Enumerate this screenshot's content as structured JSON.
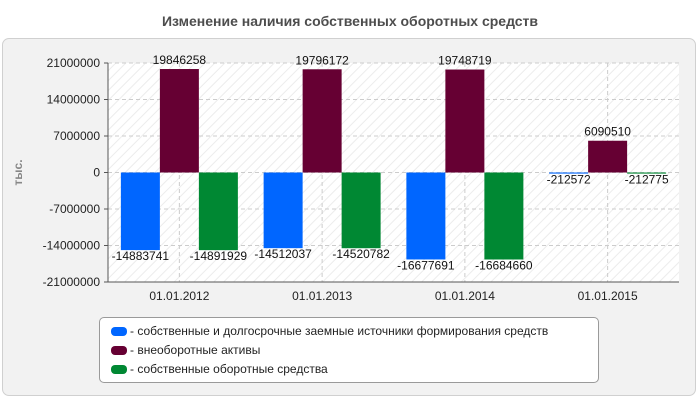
{
  "chart_data": {
    "type": "bar",
    "title": "Изменение наличия собственных оборотных средств",
    "ylabel": "тыс.",
    "xlabel": "",
    "categories": [
      "01.01.2012",
      "01.01.2013",
      "01.01.2014",
      "01.01.2015"
    ],
    "series": [
      {
        "name": "- собственные и долгосрочные заемные источники формирования средств",
        "color": "#0066ff",
        "values": [
          -14883741,
          -14512037,
          -16677691,
          -212572
        ],
        "labels": [
          "-14883741",
          "-14512037",
          "-16677691",
          "-212572"
        ]
      },
      {
        "name": "- внеоборотные активы",
        "color": "#660033",
        "values": [
          19846258,
          19796172,
          19748719,
          6090510
        ],
        "labels": [
          "19846258",
          "19796172",
          "19748719",
          "6090510"
        ]
      },
      {
        "name": "- собственные оборотные средства",
        "color": "#008833",
        "values": [
          -14891929,
          -14520782,
          -16684660,
          -212775
        ],
        "labels": [
          "-14891929",
          "-14520782",
          "-16684660",
          "-212775"
        ]
      }
    ],
    "yticks": [
      21000000,
      14000000,
      7000000,
      0,
      -7000000,
      -14000000,
      -21000000
    ],
    "ytick_labels": [
      "21000000",
      "14000000",
      "7000000",
      "0",
      "-7000000",
      "-14000000",
      "-21000000"
    ],
    "ylim": [
      -21000000,
      21000000
    ],
    "grid": true,
    "legend_position": "bottom"
  }
}
